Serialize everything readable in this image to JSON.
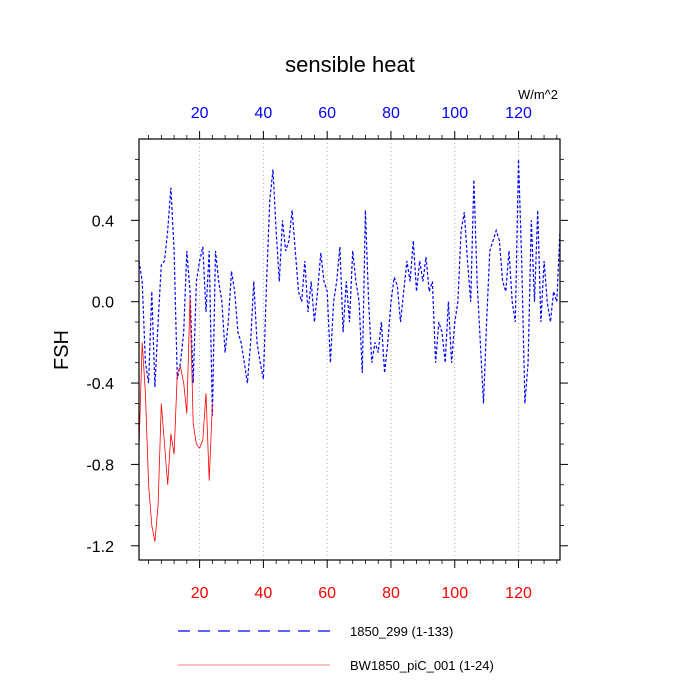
{
  "chart_data": {
    "type": "line",
    "title": "sensible heat",
    "ylabel": "FSH",
    "units_label": "W/m^2",
    "xlim": [
      1,
      133
    ],
    "ylim": [
      -1.27,
      0.8
    ],
    "x_ticks": [
      20,
      40,
      60,
      80,
      100,
      120
    ],
    "y_ticks": [
      -1.2,
      -0.8,
      -0.4,
      0.0,
      0.4
    ],
    "y_tick_labels": [
      "-1.2",
      "-0.8",
      "-0.4",
      "0.0",
      "0.4"
    ],
    "grid": "dotted vertical at x ticks",
    "legend_position": "bottom",
    "series": [
      {
        "name": "1850_299 (1-133)",
        "color": "#0000ff",
        "style": "dashed",
        "x_start": 1,
        "values": [
          0.2,
          0.1,
          -0.3,
          -0.4,
          0.05,
          -0.42,
          -0.1,
          0.18,
          0.2,
          0.35,
          0.56,
          0.25,
          -0.38,
          -0.3,
          -0.15,
          0.25,
          0.05,
          -0.4,
          0.1,
          0.2,
          0.27,
          -0.05,
          0.25,
          -0.56,
          0.25,
          0.1,
          0.0,
          -0.25,
          -0.1,
          0.15,
          0.05,
          -0.15,
          -0.2,
          -0.3,
          -0.4,
          -0.2,
          0.1,
          -0.2,
          -0.3,
          -0.38,
          0.1,
          0.5,
          0.65,
          0.35,
          0.1,
          0.4,
          0.25,
          0.3,
          0.45,
          0.25,
          0.05,
          0.0,
          0.2,
          -0.05,
          0.1,
          -0.1,
          0.05,
          0.24,
          0.1,
          0.05,
          -0.3,
          0.0,
          0.1,
          0.27,
          -0.15,
          0.1,
          -0.1,
          0.25,
          0.1,
          0.0,
          -0.35,
          0.45,
          0.0,
          -0.3,
          -0.2,
          -0.25,
          -0.1,
          -0.35,
          -0.2,
          0.0,
          0.12,
          0.08,
          -0.1,
          0.05,
          0.2,
          0.1,
          0.3,
          0.05,
          0.2,
          0.1,
          0.22,
          0.05,
          0.1,
          -0.3,
          -0.1,
          -0.15,
          -0.3,
          0.0,
          -0.3,
          -0.1,
          0.0,
          0.35,
          0.44,
          0.2,
          0.0,
          0.6,
          0.1,
          -0.2,
          -0.5,
          -0.1,
          0.25,
          0.3,
          0.35,
          0.3,
          0.1,
          0.05,
          0.25,
          0.0,
          -0.1,
          0.7,
          0.2,
          -0.5,
          -0.3,
          0.4,
          0.0,
          0.45,
          -0.1,
          0.2,
          0.0,
          -0.1,
          0.05,
          0.0,
          0.35
        ]
      },
      {
        "name": "BW1850_piC_001 (1-24)",
        "color": "#ff0000",
        "style": "solid",
        "x_start": 1,
        "values": [
          -0.72,
          -0.2,
          -0.45,
          -0.9,
          -1.1,
          -1.18,
          -1.0,
          -0.5,
          -0.7,
          -0.9,
          -0.65,
          -0.75,
          -0.35,
          -0.32,
          -0.4,
          -0.55,
          0.02,
          -0.6,
          -0.7,
          -0.72,
          -0.68,
          -0.45,
          -0.88,
          -0.5
        ]
      }
    ]
  }
}
